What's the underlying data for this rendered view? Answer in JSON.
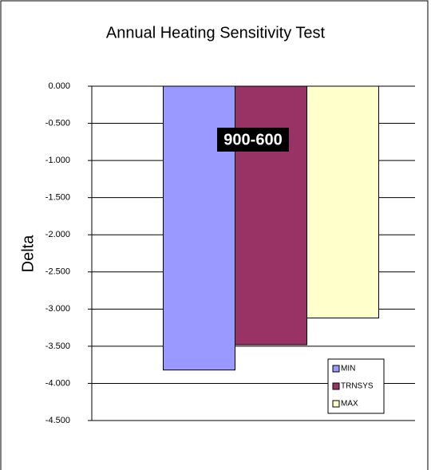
{
  "chart_data": {
    "type": "bar",
    "title": "Annual Heating Sensitivity Test",
    "y_label": "Delta",
    "categories": [
      null
    ],
    "series": [
      {
        "name": "MIN",
        "color": "#9999ff",
        "values": [
          -3.82
        ]
      },
      {
        "name": "TRNSYS",
        "color": "#993366",
        "values": [
          -3.48
        ]
      },
      {
        "name": "MAX",
        "color": "#ffffcc",
        "values": [
          -3.12
        ]
      }
    ],
    "ylim": [
      -4.5,
      0
    ],
    "yticks": [
      {
        "value": 0,
        "label": "0.000"
      },
      {
        "value": -0.5,
        "label": "-0.500"
      },
      {
        "value": -1,
        "label": "-1.000"
      },
      {
        "value": -1.5,
        "label": "-1.500"
      },
      {
        "value": -2,
        "label": "-2.000"
      },
      {
        "value": -2.5,
        "label": "-2.500"
      },
      {
        "value": -3,
        "label": "-3.000"
      },
      {
        "value": -3.5,
        "label": "-3.500"
      },
      {
        "value": -4,
        "label": "-4.000"
      },
      {
        "value": -4.5,
        "label": "-4.500"
      }
    ],
    "grid": true,
    "legend": "lower right",
    "annotations": [
      {
        "text": "900-600"
      }
    ]
  }
}
